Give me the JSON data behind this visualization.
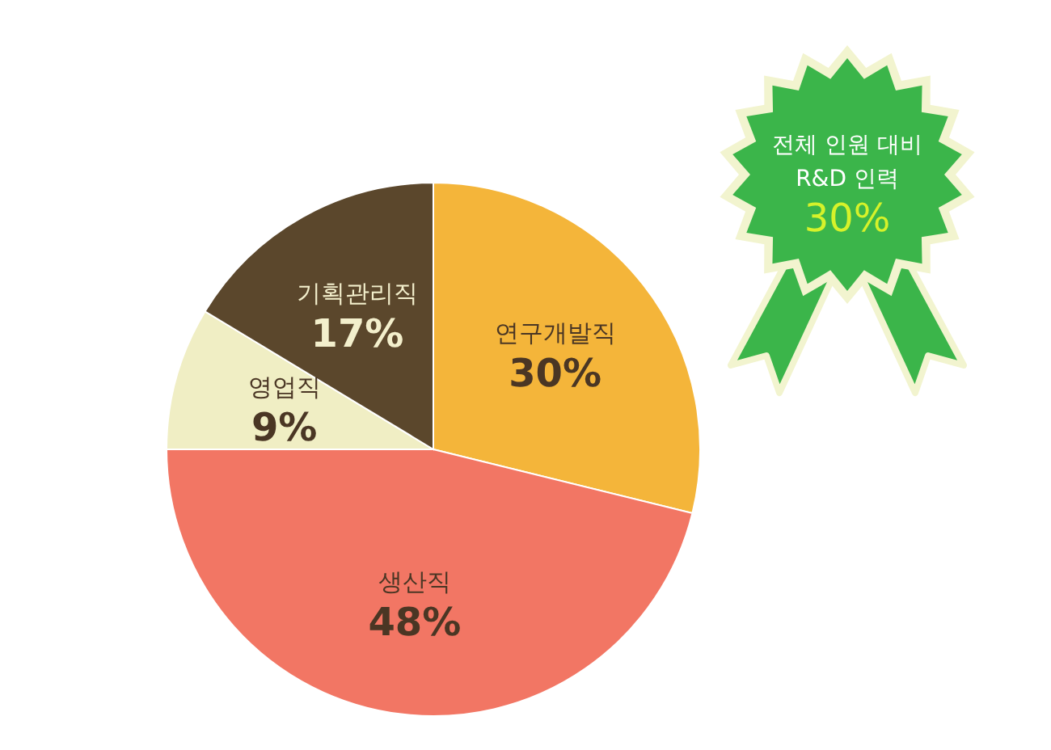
{
  "chart_data": {
    "type": "pie",
    "categories": [
      "연구개발직",
      "생산직",
      "영업직",
      "기획관리직"
    ],
    "values": [
      30,
      48,
      9,
      17
    ],
    "colors": [
      "#f4b53a",
      "#f27664",
      "#f0eec4",
      "#5b472c"
    ],
    "value_labels": [
      "30%",
      "48%",
      "9%",
      "17%"
    ],
    "annotations": [
      "전체 인원 대비\nR&D 인력\n30%"
    ]
  }
}
